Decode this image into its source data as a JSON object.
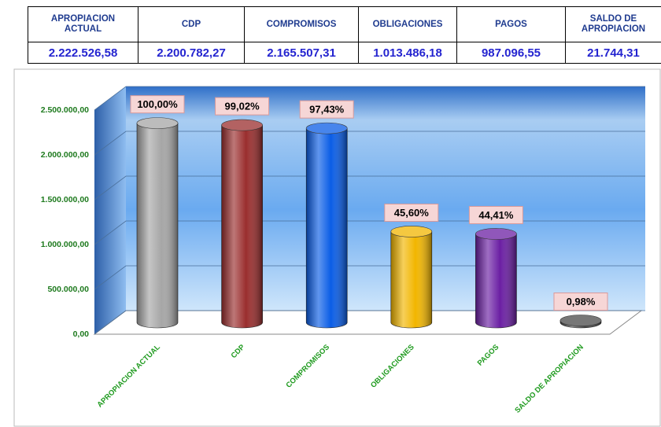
{
  "table": {
    "headers": [
      [
        "APROPIACION",
        "ACTUAL"
      ],
      [
        "CDP"
      ],
      [
        "COMPROMISOS"
      ],
      [
        "OBLIGACIONES"
      ],
      [
        "PAGOS"
      ],
      [
        "SALDO DE",
        "APROPIACION"
      ]
    ],
    "values": [
      "2.222.526,58",
      "2.200.782,27",
      "2.165.507,31",
      "1.013.486,18",
      "987.096,55",
      "21.744,31"
    ]
  },
  "chart_data": {
    "type": "bar",
    "categories": [
      "APROPIACION ACTUAL",
      "CDP",
      "COMPROMISOS",
      "OBLIGACIONES",
      "PAGOS",
      "SALDO DE APROPIACION"
    ],
    "values": [
      2222526.58,
      2200782.27,
      2165507.31,
      1013486.18,
      987096.55,
      21744.31
    ],
    "percentages": [
      100,
      99.02,
      97.43,
      45.6,
      44.41,
      0.98
    ],
    "percentage_labels": [
      "100,00%",
      "99,02%",
      "97,43%",
      "45,60%",
      "44,41%",
      "0,98%"
    ],
    "colors": [
      "#a6a6a6",
      "#9a2e2e",
      "#0a5de6",
      "#f2b600",
      "#6b1fa3",
      "#4a4a4a"
    ],
    "ylim": [
      0,
      2500000
    ],
    "yticks": [
      {
        "value": 0,
        "label": "0,00"
      },
      {
        "value": 500000,
        "label": "500.000,00"
      },
      {
        "value": 1000000,
        "label": "1.000.000,00"
      },
      {
        "value": 1500000,
        "label": "1.500.000,00"
      },
      {
        "value": 2000000,
        "label": "2.000.000,00"
      },
      {
        "value": 2500000,
        "label": "2.500.000,00"
      }
    ],
    "grid": true
  }
}
